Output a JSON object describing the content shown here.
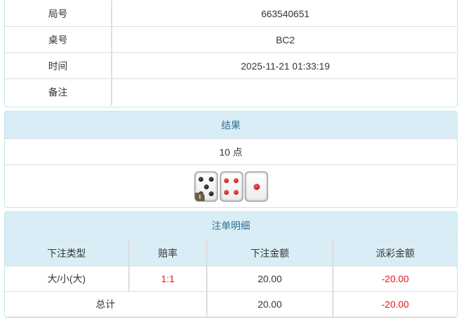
{
  "info": {
    "rows": [
      {
        "label": "局号",
        "value": "663540651"
      },
      {
        "label": "桌号",
        "value": "BC2"
      },
      {
        "label": "时间",
        "value": "2025-11-21 01:33:19"
      },
      {
        "label": "备注",
        "value": ""
      }
    ]
  },
  "result": {
    "title": "结果",
    "points": "10 点",
    "dice": [
      5,
      4,
      1
    ],
    "badge": "i"
  },
  "bets": {
    "title": "注单明细",
    "headers": [
      "下注类型",
      "赔率",
      "下注金额",
      "派彩金额"
    ],
    "rows": [
      {
        "type": "大/小(大)",
        "odds": "1:1",
        "amount": "20.00",
        "payout": "-20.00"
      }
    ],
    "total": {
      "label": "总计",
      "amount": "20.00",
      "payout": "-20.00"
    }
  },
  "colors": {
    "header_bg": "#d9edf7",
    "header_text": "#31708f",
    "negative": "#e4141c"
  }
}
